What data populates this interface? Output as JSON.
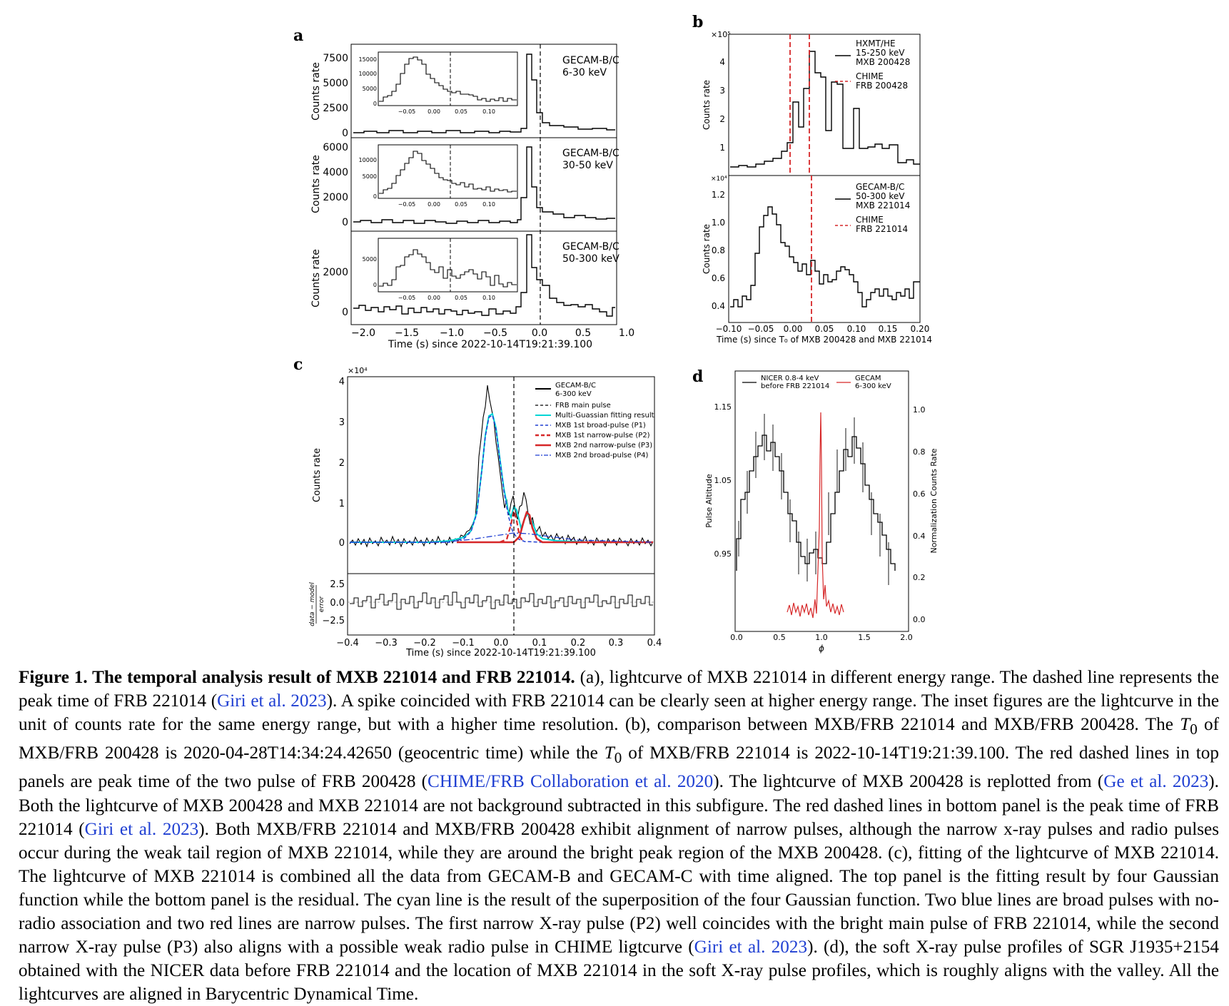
{
  "panels": {
    "a": {
      "letter": "a",
      "xlabel": "Time (s) since 2022-10-14T19:21:39.100",
      "xticks": [
        "−2.0",
        "−1.5",
        "−1.0",
        "−0.5",
        "0.0",
        "0.5",
        "1.0"
      ],
      "ylabel": "Counts rate",
      "subpanels": [
        {
          "band": "GECAM-B/C",
          "range": "6-30 keV",
          "yticks": [
            "7500",
            "5000",
            "2500",
            "0"
          ],
          "inset_yticks": [
            "15000",
            "10000",
            "5000",
            "0"
          ],
          "inset_xticks": [
            "−0.05",
            "0.00",
            "0.05",
            "0.10"
          ]
        },
        {
          "band": "GECAM-B/C",
          "range": "30-50 keV",
          "yticks": [
            "6000",
            "4000",
            "2000",
            "0"
          ],
          "inset_yticks": [
            "10000",
            "5000",
            "0"
          ],
          "inset_xticks": [
            "−0.05",
            "0.00",
            "0.05",
            "0.10"
          ]
        },
        {
          "band": "GECAM-B/C",
          "range": "50-300 keV",
          "yticks": [
            "2000",
            "0"
          ],
          "inset_yticks": [
            "5000",
            "0"
          ],
          "inset_xticks": [
            "−0.05",
            "0.00",
            "0.05",
            "0.10"
          ]
        }
      ]
    },
    "b": {
      "letter": "b",
      "xlabel": "Time (s) since T₀ of MXB 200428 and MXB 221014",
      "xticks": [
        "−0.10",
        "−0.05",
        "0.00",
        "0.05",
        "0.10",
        "0.15",
        "0.20"
      ],
      "ylabel": "Counts rate",
      "top": {
        "scale": "×10⁵",
        "yticks": [
          "4",
          "3",
          "2",
          "1"
        ],
        "legend1": [
          "HXMT/HE",
          "15-250 keV",
          "MXB 200428"
        ],
        "legend2": [
          "CHIME",
          "FRB 200428"
        ]
      },
      "bottom": {
        "scale": "×10⁴",
        "yticks": [
          "1.2",
          "1.0",
          "0.8",
          "0.6",
          "0.4"
        ],
        "legend1": [
          "GECAM-B/C",
          "50-300 keV",
          "MXB 221014"
        ],
        "legend2": [
          "CHIME",
          "FRB 221014"
        ]
      }
    },
    "c": {
      "letter": "c",
      "xlabel": "Time (s) since 2022-10-14T19:21:39.100",
      "xticks": [
        "−0.4",
        "−0.3",
        "−0.2",
        "−0.1",
        "0.0",
        "0.1",
        "0.2",
        "0.3",
        "0.4"
      ],
      "scale": "×10⁴",
      "yticks": [
        "4",
        "3",
        "2",
        "1",
        "0"
      ],
      "ylabel": "Counts rate",
      "res_ylabel_1": "data − model",
      "res_ylabel_2": "error",
      "res_yticks": [
        "2.5",
        "0.0",
        "−2.5"
      ],
      "legend": [
        [
          "GECAM-B/C",
          "6-300 keV"
        ],
        [
          "FRB main pulse"
        ],
        [
          "Multi-Guassian fitting result"
        ],
        [
          "MXB 1st broad-pulse (P1)"
        ],
        [
          "MXB 1st narrow-pulse (P2)"
        ],
        [
          "MXB 2nd narrow-pulse (P3)"
        ],
        [
          "MXB 2nd broad-pulse (P4)"
        ]
      ]
    },
    "d": {
      "letter": "d",
      "xlabel": "ϕ",
      "xticks": [
        "0.0",
        "0.5",
        "1.0",
        "1.5",
        "2.0"
      ],
      "ylabel": "Pulse Altitude",
      "yticks": [
        "1.15",
        "1.05",
        "0.95"
      ],
      "ylabel_right": "Normalization Counts Rate",
      "yticks_right": [
        "1.0",
        "0.8",
        "0.6",
        "0.4",
        "0.2",
        "0.0"
      ],
      "legend_nicer": [
        "NICER 0.8-4 keV",
        "before FRB 221014"
      ],
      "legend_gecam": [
        "GECAM",
        "6-300 keV"
      ]
    }
  },
  "caption": {
    "title": "Figure 1. The temporal analysis result of MXB 221014 and FRB 221014.",
    "s1": " (a), lightcurve of MXB 221014 in different energy range. The dashed line represents the peak time of FRB 221014 (",
    "c1": "Giri et al. 2023",
    "s2": "). A spike coincided with FRB 221014 can be clearly seen at higher energy range. The inset figures are the lightcurve in the unit of counts rate for the same energy range, but with a higher time resolution. (b), comparison between MXB/FRB 221014 and MXB/FRB 200428. The ",
    "t0": "T",
    "sub0": "0",
    "s3": " of MXB/FRB 200428 is 2020-04-28T14:34:24.42650 (geocentric time) while the ",
    "s4": " of MXB/FRB 221014 is 2022-10-14T19:21:39.100. The red dashed lines in top panels are peak time of the two pulse of FRB 200428 (",
    "c2": "CHIME/FRB Collaboration et al. 2020",
    "s5": "). The lightcurve of MXB 200428 is replotted from (",
    "c3": "Ge et al. 2023",
    "s6": "). Both the lightcurve of MXB 200428 and MXB 221014 are not background subtracted in this subfigure. The red dashed lines in bottom panel is the peak time of FRB 221014 (",
    "c4": "Giri et al. 2023",
    "s7": "). Both MXB/FRB 221014 and MXB/FRB 200428 exhibit alignment of narrow pulses, although the narrow x-ray pulses and radio pulses occur during the weak tail region of MXB 221014, while they are around the bright peak region of the MXB 200428. (c), fitting of the lightcurve of MXB 221014. The lightcurve of MXB 221014 is combined all the data from GECAM-B and GECAM-C with time aligned. The top panel is the fitting result by four Gaussian function while the bottom panel is the residual. The cyan line is the result of the superposition of the four Gaussian function. Two blue lines are broad pulses with no-radio association and two red lines are narrow pulses. The first narrow X-ray pulse (P2) well coincides with the bright main pulse of FRB 221014, while the second narrow X-ray pulse (P3) also aligns with a possible weak radio pulse in CHIME ligtcurve (",
    "c5": "Giri et al. 2023",
    "s8": "). (d), the soft X-ray pulse profiles of SGR J1935+2154 obtained with the NICER data before FRB 221014 and the location of MXB 221014 in the soft X-ray pulse profiles, which is roughly aligns with the valley. All the lightcurves are aligned in Barycentric Dynamical Time."
  }
}
